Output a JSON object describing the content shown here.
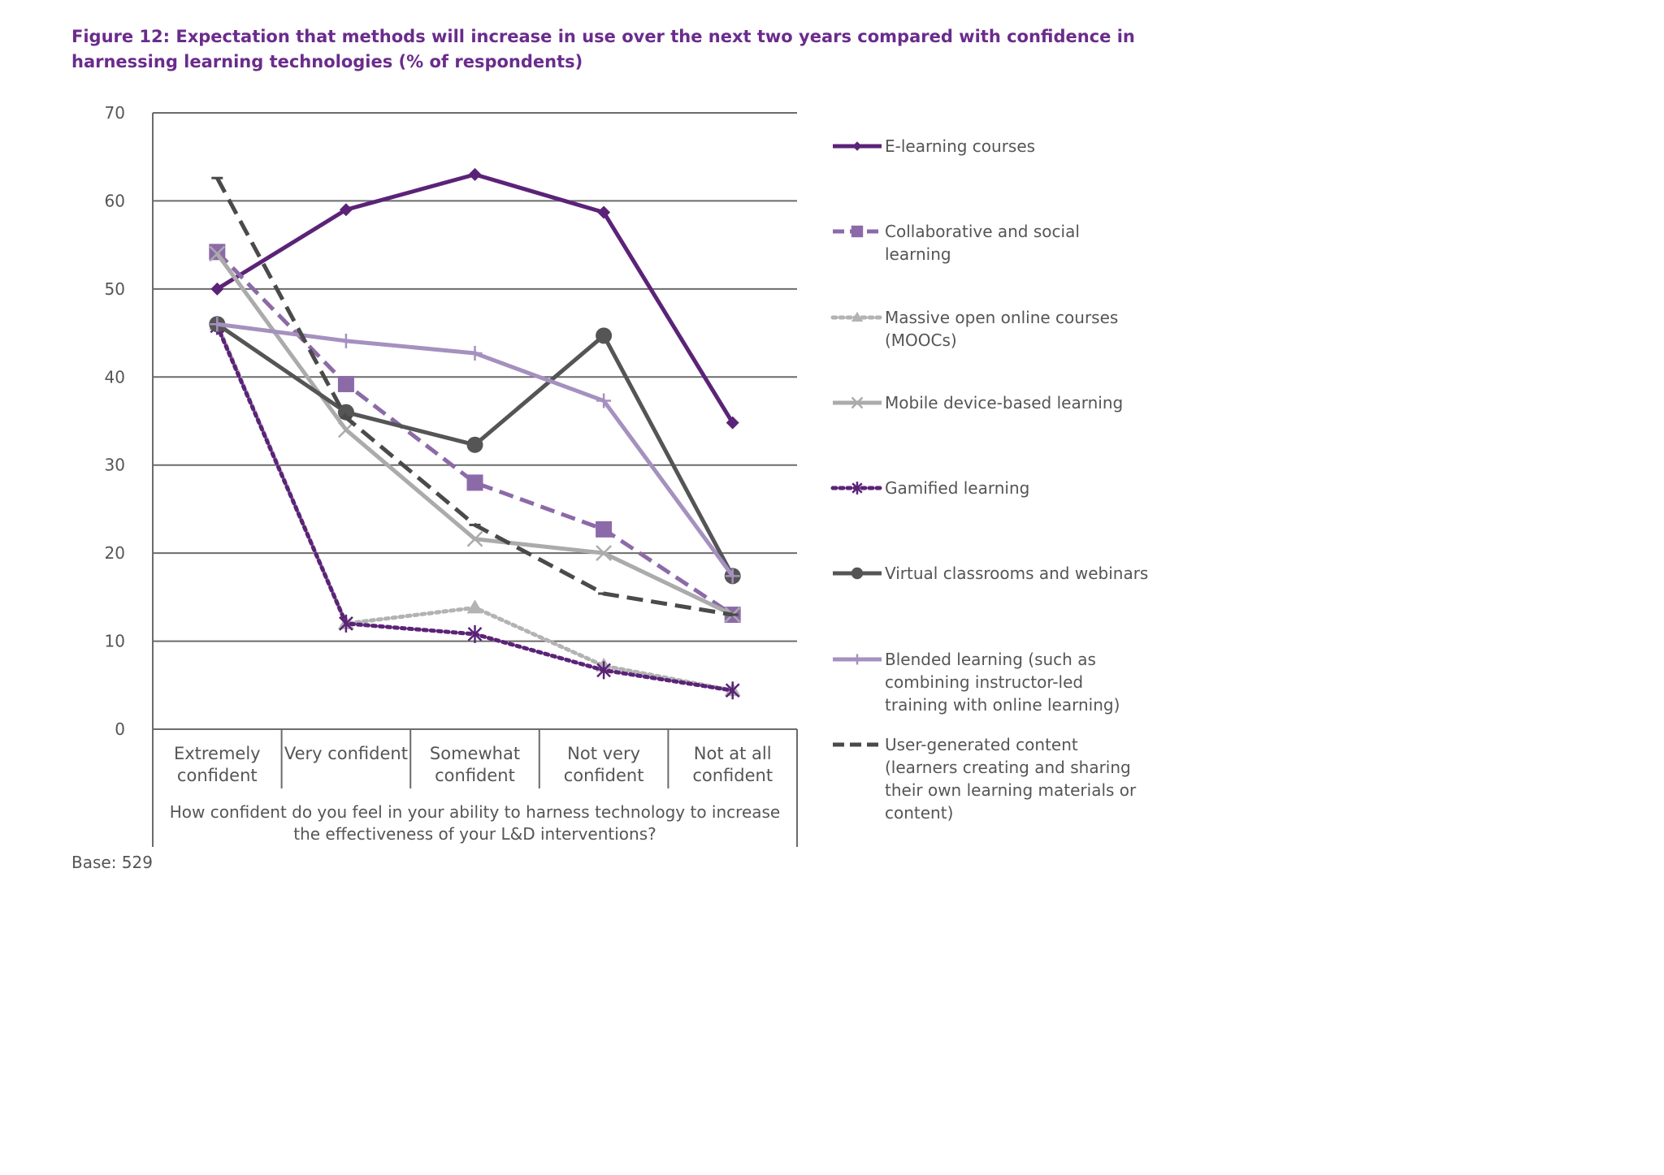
{
  "chart_data": {
    "type": "line",
    "title": "Figure 12: Expectation that methods will increase in use over the next two years compared with confidence in harnessing learning technologies (% of respondents)",
    "xlabel": "How confident do you feel in your ability to harness technology to increase the effectiveness of your L&D interventions?",
    "ylabel": "",
    "ylim": [
      0,
      70
    ],
    "yticks": [
      0,
      10,
      20,
      30,
      40,
      50,
      60,
      70
    ],
    "grid": true,
    "legend_position": "right",
    "categories": [
      "Extremely confident",
      "Very confident",
      "Somewhat confident",
      "Not very confident",
      "Not at all confident"
    ],
    "series": [
      {
        "name": "E-learning courses",
        "values": [
          50,
          59,
          63,
          58.7,
          34.8
        ],
        "color": "#5b2378",
        "dash": "solid",
        "marker": "diamond"
      },
      {
        "name": "Collaborative and social learning",
        "values": [
          54.2,
          39.2,
          28,
          22.7,
          13
        ],
        "color": "#8c6aa8",
        "dash": "dash",
        "marker": "square"
      },
      {
        "name": "Massive open online courses (MOOCs)",
        "values": [
          46,
          12,
          13.8,
          7.2,
          4.4
        ],
        "color": "#b3b3b3",
        "dash": "dot",
        "marker": "triangle"
      },
      {
        "name": "Mobile device-based learning",
        "values": [
          54,
          34,
          21.6,
          20,
          13
        ],
        "color": "#ababab",
        "dash": "solid",
        "marker": "x"
      },
      {
        "name": "Gamified learning",
        "values": [
          45.8,
          12,
          10.8,
          6.7,
          4.4
        ],
        "color": "#5b2378",
        "dash": "dot",
        "marker": "star"
      },
      {
        "name": "Virtual classrooms and webinars",
        "values": [
          46,
          36,
          32.3,
          44.7,
          17.4
        ],
        "color": "#555555",
        "dash": "solid",
        "marker": "circle"
      },
      {
        "name": "Blended learning (such as combining instructor-led training with online learning)",
        "values": [
          46,
          44.1,
          42.7,
          37.3,
          17.4
        ],
        "color": "#a590bf",
        "dash": "solid",
        "marker": "plus"
      },
      {
        "name": "User-generated content (learners creating and sharing their own learning materials or content)",
        "values": [
          62.6,
          35.4,
          23.2,
          15.4,
          13
        ],
        "color": "#4a4a4a",
        "dash": "longdash",
        "marker": "dash"
      }
    ]
  },
  "footer": {
    "base": "Base: 529"
  }
}
